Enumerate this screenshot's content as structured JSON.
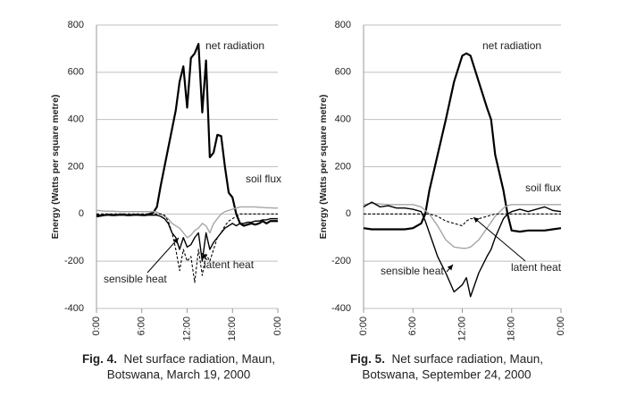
{
  "chart_data": [
    {
      "type": "line",
      "caption_label": "Fig. 4.",
      "caption": [
        "Net surface radiation, Maun,",
        "Botswana, March 19, 2000"
      ],
      "y_label": "Energy (Watts per square metre)",
      "x": [
        0,
        0.5,
        1,
        1.5,
        2,
        2.5,
        3,
        3.5,
        4,
        4.5,
        5,
        5.5,
        6,
        6.5,
        7,
        7.5,
        8,
        8.5,
        9,
        9.5,
        10,
        10.5,
        11,
        11.5,
        12,
        12.5,
        13,
        13.5,
        14,
        14.5,
        15,
        15.5,
        16,
        16.5,
        17,
        17.5,
        18,
        18.5,
        19,
        19.5,
        20,
        20.5,
        21,
        21.5,
        22,
        22.5,
        23,
        23.5,
        24
      ],
      "xlim": [
        0,
        24
      ],
      "xticks": [
        {
          "value": 0,
          "label": "0:00"
        },
        {
          "value": 6,
          "label": "6:00"
        },
        {
          "value": 12,
          "label": "12:00"
        },
        {
          "value": 18,
          "label": "18:00"
        },
        {
          "value": 24,
          "label": "0:00"
        }
      ],
      "ylim": [
        -400,
        800
      ],
      "yticks": [
        -400,
        -200,
        0,
        200,
        400,
        600,
        800
      ],
      "grid": true,
      "series": [
        {
          "name": "net radiation",
          "color": "#000000",
          "values": [
            -10,
            -8,
            -5,
            -3,
            -5,
            -5,
            -3,
            -2,
            -5,
            -5,
            -3,
            -3,
            -5,
            -5,
            0,
            5,
            30,
            120,
            200,
            280,
            360,
            440,
            560,
            625,
            450,
            660,
            680,
            720,
            430,
            650,
            240,
            260,
            335,
            330,
            200,
            90,
            70,
            0,
            -40,
            -50,
            -45,
            -40,
            -45,
            -40,
            -30,
            -40,
            -30,
            -30,
            -30
          ]
        },
        {
          "name": "soil flux",
          "color": "#a6a6a6",
          "values": [
            15,
            14,
            12,
            12,
            12,
            11,
            10,
            10,
            10,
            10,
            10,
            10,
            10,
            10,
            10,
            10,
            8,
            0,
            -10,
            -20,
            -40,
            -50,
            -60,
            -80,
            -100,
            -90,
            -70,
            -60,
            -40,
            -50,
            -80,
            -40,
            -20,
            0,
            10,
            15,
            20,
            25,
            30,
            30,
            30,
            30,
            30,
            28,
            28,
            26,
            26,
            25,
            25
          ]
        },
        {
          "name": "sensible heat",
          "color": "#000000",
          "values": [
            -5,
            -5,
            -5,
            -4,
            -4,
            -5,
            -5,
            -5,
            -4,
            -4,
            -5,
            -5,
            -5,
            -5,
            -5,
            -5,
            -5,
            -10,
            -20,
            -40,
            -80,
            -100,
            -150,
            -100,
            -140,
            -130,
            -100,
            -80,
            -200,
            -80,
            -150,
            -120,
            -100,
            -80,
            -60,
            -50,
            -40,
            -50,
            -40,
            -40,
            -35,
            -35,
            -30,
            -30,
            -25,
            -25,
            -20,
            -20,
            -20
          ]
        },
        {
          "name": "latent heat",
          "color": "#000000",
          "line_style": "dashed",
          "values": [
            0,
            0,
            0,
            0,
            0,
            0,
            0,
            0,
            0,
            0,
            0,
            0,
            0,
            0,
            0,
            0,
            0,
            0,
            -5,
            -30,
            -80,
            -150,
            -240,
            -150,
            -200,
            -180,
            -290,
            -150,
            -260,
            -170,
            -200,
            -150,
            -100,
            -80,
            -50,
            -30,
            -20,
            -10,
            0,
            0,
            0,
            0,
            0,
            0,
            0,
            0,
            0,
            0,
            0
          ]
        }
      ],
      "annotations": [
        "net radiation",
        "soil flux",
        "latent heat",
        "sensible heat"
      ]
    },
    {
      "type": "line",
      "caption_label": "Fig. 5.",
      "caption": [
        "Net surface radiation, Maun,",
        "Botswana, September 24, 2000"
      ],
      "y_label": "Energy (Watts per square metre)",
      "x": [
        0,
        1,
        2,
        3,
        4,
        5,
        6,
        7,
        7.5,
        8,
        9,
        10,
        11,
        12,
        12.5,
        13,
        14,
        15,
        15.5,
        16,
        17,
        17.5,
        18,
        19,
        20,
        21,
        22,
        23,
        24
      ],
      "xlim": [
        0,
        24
      ],
      "xticks": [
        {
          "value": 0,
          "label": "0:00"
        },
        {
          "value": 6,
          "label": "6:00"
        },
        {
          "value": 12,
          "label": "12:00"
        },
        {
          "value": 18,
          "label": "18:00"
        },
        {
          "value": 24,
          "label": "0:00"
        }
      ],
      "ylim": [
        -400,
        800
      ],
      "yticks": [
        -400,
        -200,
        0,
        200,
        400,
        600,
        800
      ],
      "grid": true,
      "series": [
        {
          "name": "net radiation",
          "color": "#000000",
          "values": [
            -60,
            -65,
            -65,
            -65,
            -65,
            -65,
            -60,
            -40,
            0,
            100,
            250,
            400,
            560,
            670,
            680,
            670,
            560,
            450,
            400,
            250,
            100,
            0,
            -70,
            -75,
            -70,
            -70,
            -70,
            -65,
            -60
          ]
        },
        {
          "name": "soil flux",
          "color": "#a6a6a6",
          "values": [
            40,
            45,
            42,
            40,
            40,
            40,
            40,
            30,
            15,
            0,
            -50,
            -110,
            -140,
            -145,
            -145,
            -140,
            -110,
            -60,
            -35,
            -10,
            25,
            35,
            40,
            40,
            40,
            40,
            40,
            40,
            40
          ]
        },
        {
          "name": "sensible heat",
          "color": "#000000",
          "values": [
            30,
            50,
            30,
            35,
            25,
            25,
            20,
            10,
            -30,
            -80,
            -180,
            -250,
            -330,
            -300,
            -270,
            -350,
            -250,
            -180,
            -150,
            -100,
            -20,
            0,
            10,
            20,
            10,
            20,
            30,
            15,
            10
          ]
        },
        {
          "name": "latent heat",
          "color": "#000000",
          "line_style": "dashed",
          "values": [
            0,
            0,
            0,
            0,
            0,
            0,
            0,
            0,
            0,
            0,
            -10,
            -30,
            -40,
            -50,
            -30,
            -20,
            -20,
            -10,
            -5,
            0,
            0,
            0,
            0,
            0,
            0,
            0,
            0,
            0,
            0
          ]
        }
      ],
      "annotations": [
        "net radiation",
        "soil flux",
        "sensible heat",
        "latent heat"
      ]
    }
  ]
}
